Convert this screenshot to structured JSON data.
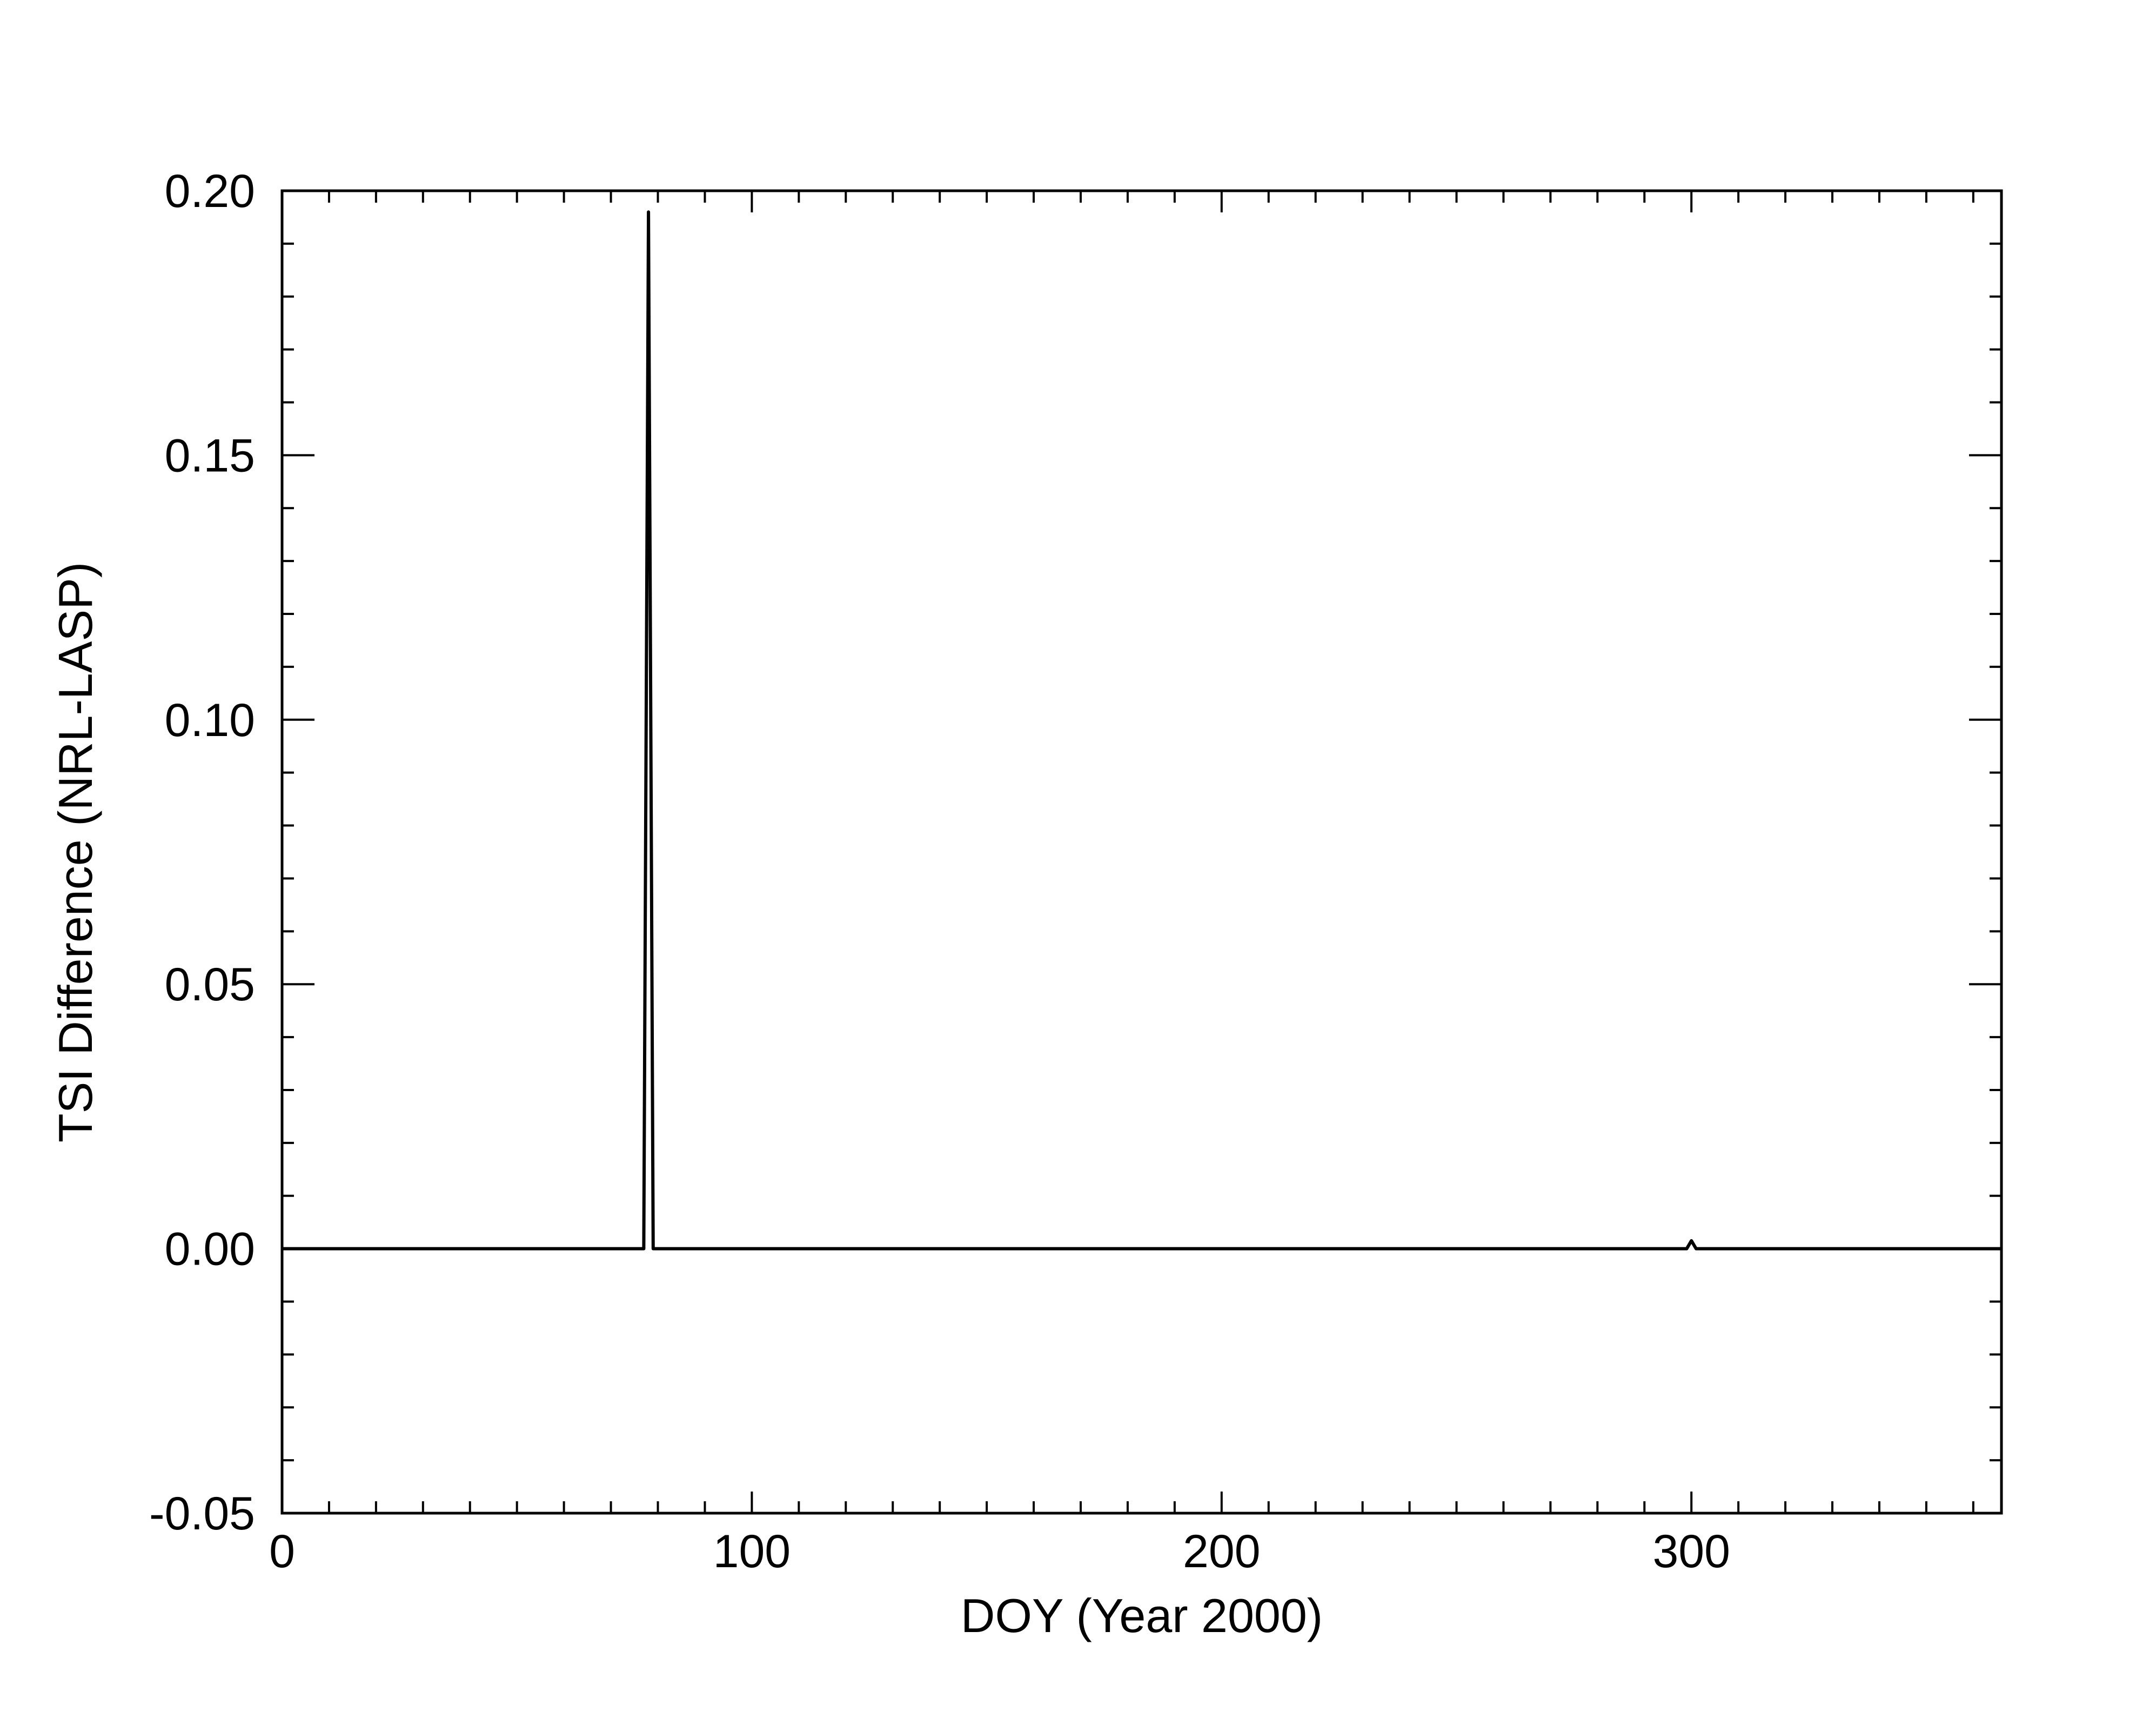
{
  "chart_data": {
    "type": "line",
    "title": "",
    "xlabel": "DOY (Year 2000)",
    "ylabel": "TSI Difference (NRL-LASP)",
    "xlim": [
      0,
      366
    ],
    "ylim": [
      -0.05,
      0.2
    ],
    "x_ticks": [
      0,
      100,
      200,
      300
    ],
    "x_tick_labels": [
      "0",
      "100",
      "200",
      "300"
    ],
    "x_minor_step": 10,
    "y_ticks": [
      -0.05,
      0.0,
      0.05,
      0.1,
      0.15,
      0.2
    ],
    "y_tick_labels": [
      "-0.05",
      "0.00",
      "0.05",
      "0.10",
      "0.15",
      "0.20"
    ],
    "y_minor_step": 0.01,
    "grid": false,
    "legend": "none",
    "line_color": "#000000",
    "series": [
      {
        "x": [
          0,
          50,
          76,
          77,
          78,
          79,
          80,
          100,
          150,
          200,
          250,
          296,
          299,
          300,
          301,
          304,
          330,
          366
        ],
        "values": [
          0.0,
          0.0,
          0.0,
          0.0,
          0.196,
          0.0,
          0.0,
          0.0,
          0.0,
          0.0,
          0.0,
          0.0,
          0.0,
          0.0015,
          0.0,
          0.0,
          0.0,
          0.0
        ]
      }
    ]
  }
}
